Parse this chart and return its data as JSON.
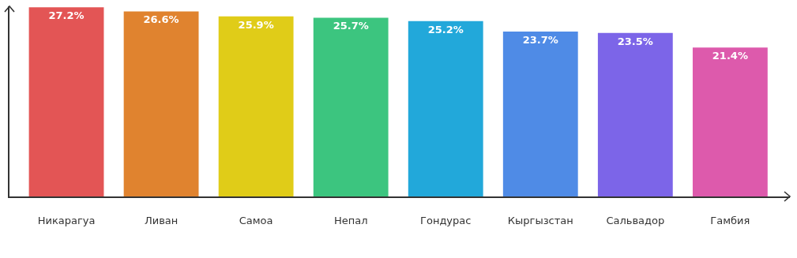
{
  "chart_data": {
    "type": "bar",
    "categories": [
      "Никарагуа",
      "Ливан",
      "Самоа",
      "Непал",
      "Гондурас",
      "Кыргызстан",
      "Сальвадор",
      "Гамбия"
    ],
    "values": [
      27.2,
      26.6,
      25.9,
      25.7,
      25.2,
      23.7,
      23.5,
      21.4
    ],
    "value_labels": [
      "27.2%",
      "26.6%",
      "25.9%",
      "25.7%",
      "25.2%",
      "23.7%",
      "23.5%",
      "21.4%"
    ],
    "colors": [
      "#e35555",
      "#e0832f",
      "#e0cc18",
      "#3cc57f",
      "#22a8da",
      "#4f8be6",
      "#7c65e8",
      "#dd5aac"
    ],
    "grid": false,
    "legend": false
  }
}
